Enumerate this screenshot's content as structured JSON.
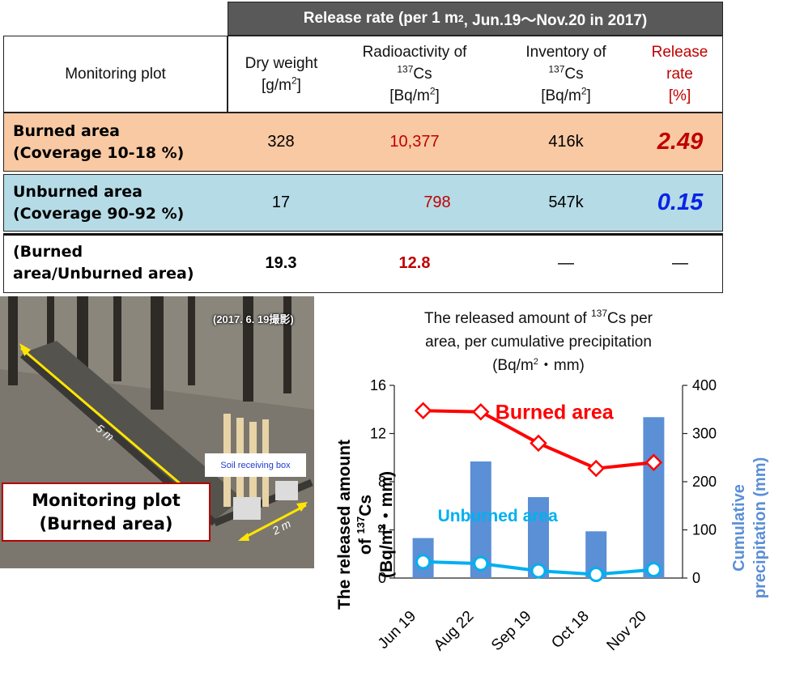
{
  "table": {
    "header": {
      "prefix": "Release rate (per 1 m",
      "sup": "2",
      "suffix": ", Jun.19～Nov.20 in 2017)"
    },
    "columns": {
      "plot": "Monitoring plot",
      "dry_weight": {
        "line1": "Dry weight",
        "line2a": "[g/m",
        "line2sup": "2",
        "line2b": "]"
      },
      "radioactivity": {
        "line1": "Radioactivity of",
        "sup": "137",
        "line2": "Cs",
        "line3a": "[Bq/m",
        "line3sup": "2",
        "line3b": "]"
      },
      "inventory": {
        "line1": "Inventory of",
        "sup": "137",
        "line2": "Cs",
        "line3a": "[Bq/m",
        "line3sup": "2",
        "line3b": "]"
      },
      "release": {
        "line1": "Release",
        "line2": "rate",
        "line3": "[%]"
      }
    },
    "rows": [
      {
        "label1": "Burned area",
        "label2": "(Coverage 10-18 %)",
        "dry_weight": "328",
        "radioactivity": "10,377",
        "inventory": "416k",
        "release": "2.49"
      },
      {
        "label1": "Unburned area",
        "label2": "(Coverage 90-92 %)",
        "dry_weight": "17",
        "radioactivity": "798",
        "inventory": "547k",
        "release": "0.15"
      },
      {
        "label1": "(Burned",
        "label2": "area/Unburned area)",
        "dry_weight": "19.3",
        "radioactivity": "12.8",
        "inventory": "—",
        "release": "—"
      }
    ]
  },
  "photo": {
    "stamp": "(2017. 6. 19撮影)",
    "soil_box_label": "Soil receiving box",
    "plot_label_line1": "Monitoring plot",
    "plot_label_line2": "(Burned area)",
    "dim_long": "5 m",
    "dim_short": "2 m"
  },
  "chart_data": {
    "type": "bar+line",
    "title": {
      "line1a": "The released amount of ",
      "sup": "137",
      "line1b": "Cs per",
      "line2": "area, per cumulative precipitation",
      "line3a": "(Bq/m",
      "line3sup": "2",
      "line3b": "・mm)"
    },
    "categories": [
      "Jun 19",
      "Aug 22",
      "Sep 19",
      "Oct 18",
      "Nov 20"
    ],
    "left_axis": {
      "label_line1": "The released amount",
      "label_line2a": "of ",
      "label_sup": "137",
      "label_line2b": "Cs",
      "label_line3a": "(Bq/m",
      "label_line3sup": "2",
      "label_line3b": "・mm)",
      "ylim": [
        0,
        16
      ],
      "ticks": [
        "0",
        "4",
        "8",
        "12",
        "16"
      ],
      "tick_values": [
        0,
        4,
        8,
        12,
        16
      ]
    },
    "right_axis": {
      "label_line1": "Cumulative",
      "label_line2": "precipitation (mm)",
      "ylim": [
        0,
        400
      ],
      "ticks": [
        "0",
        "100",
        "200",
        "300",
        "400"
      ],
      "tick_values": [
        0,
        100,
        200,
        300,
        400
      ]
    },
    "bars": {
      "name": "Cumulative precipitation (mm)",
      "color": "#5b8fd6",
      "values": [
        83,
        242,
        168,
        97,
        334
      ]
    },
    "series": [
      {
        "name": "Burned area",
        "color": "#ff0000",
        "marker": "diamond",
        "values": [
          13.9,
          13.8,
          11.2,
          9.1,
          9.6
        ]
      },
      {
        "name": "Unburned area",
        "color": "#00b0f0",
        "marker": "circle",
        "values": [
          1.35,
          1.2,
          0.6,
          0.3,
          0.7
        ]
      }
    ]
  }
}
